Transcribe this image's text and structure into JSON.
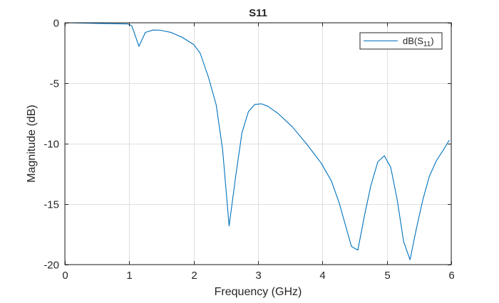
{
  "chart_data": {
    "type": "line",
    "title": "S11",
    "xlabel": "Frequency (GHz)",
    "ylabel": "Magnitude (dB)",
    "xlim": [
      0,
      6
    ],
    "ylim": [
      -20,
      0
    ],
    "xticks": [
      0,
      1,
      2,
      3,
      4,
      5,
      6
    ],
    "yticks": [
      0,
      -5,
      -10,
      -15,
      -20
    ],
    "xtick_labels": [
      "0",
      "1",
      "2",
      "3",
      "4",
      "5",
      "6"
    ],
    "ytick_labels": [
      "0",
      "-5",
      "-10",
      "-15",
      "-20"
    ],
    "grid": true,
    "legend_position": "upper right",
    "series": [
      {
        "name": "dB(S11)",
        "legend_label_main": "dB(S",
        "legend_label_sub": "11",
        "legend_label_close": ")",
        "color": "#0072BD",
        "x": [
          0.0,
          0.5,
          0.98,
          1.04,
          1.15,
          1.25,
          1.37,
          1.48,
          1.65,
          1.82,
          2.0,
          2.1,
          2.23,
          2.35,
          2.45,
          2.55,
          2.65,
          2.75,
          2.85,
          2.95,
          3.05,
          3.15,
          3.31,
          3.53,
          3.75,
          3.98,
          4.14,
          4.26,
          4.45,
          4.55,
          4.65,
          4.75,
          4.86,
          4.96,
          5.06,
          5.16,
          5.26,
          5.36,
          5.46,
          5.56,
          5.66,
          5.77,
          5.88,
          5.97
        ],
        "y": [
          0.0,
          -0.05,
          -0.1,
          -0.25,
          -1.95,
          -0.8,
          -0.6,
          -0.62,
          -0.8,
          -1.2,
          -1.8,
          -2.5,
          -4.5,
          -6.8,
          -10.5,
          -16.8,
          -12.8,
          -9.1,
          -7.35,
          -6.75,
          -6.7,
          -6.9,
          -7.5,
          -8.6,
          -10.0,
          -11.6,
          -13.1,
          -14.9,
          -18.5,
          -18.8,
          -16.0,
          -13.5,
          -11.5,
          -11.0,
          -11.95,
          -14.6,
          -18.1,
          -19.6,
          -17.0,
          -14.6,
          -12.7,
          -11.4,
          -10.5,
          -9.7
        ]
      }
    ]
  },
  "colors": {
    "line": "#0072BD",
    "axis": "#262626",
    "grid": "#dfdfdf",
    "text": "#262626"
  }
}
